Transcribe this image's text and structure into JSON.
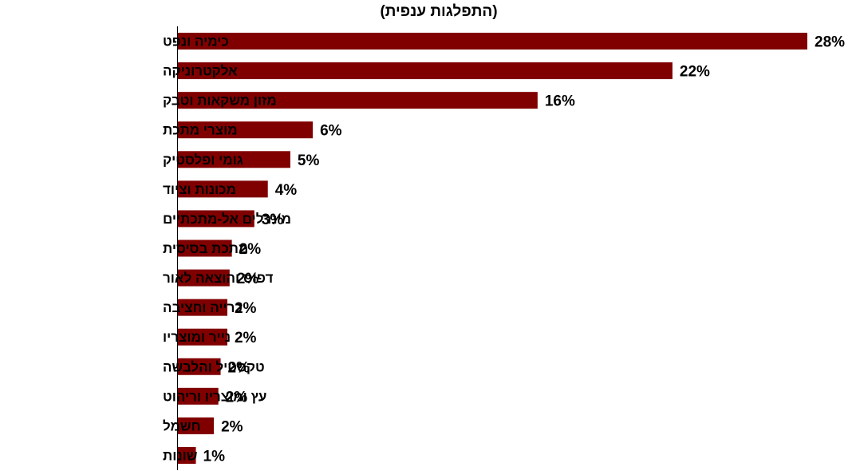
{
  "chart_data": {
    "type": "bar",
    "orientation": "horizontal",
    "title": "(התפלגות ענפית)",
    "categories": [
      "כימיה ונפט",
      "אלקטרוניקה",
      "מזון משקאות וטבק",
      "מוצרי מתכת",
      "גומי ופלסטיק",
      "מכונות וציוד",
      "מינרלים אל-מתכתיים",
      "מתכת בסיסית",
      "דפוס והוצאה לאור",
      "כרייה וחציבה",
      "נייר ומוצריו",
      "טקסטיל והלבשה",
      "עץ ומוצריו וריהוט",
      "חשמל",
      "שונות"
    ],
    "values": [
      28,
      22,
      16,
      6,
      5,
      4,
      3,
      2,
      2,
      2,
      2,
      2,
      2,
      2,
      1
    ],
    "value_labels": [
      "28%",
      "22%",
      "16%",
      "6%",
      "5%",
      "4%",
      "3%",
      "2%",
      "2%",
      "2%",
      "2%",
      "2%",
      "2%",
      "2%",
      "1%"
    ],
    "bar_fill": [
      28.0,
      22.0,
      16.0,
      6.0,
      5.0,
      4.0,
      3.4,
      2.4,
      2.3,
      2.2,
      2.2,
      1.9,
      1.8,
      1.6,
      0.8
    ],
    "xlim": [
      0,
      28
    ],
    "bar_color": "#800000",
    "grid": false,
    "legend": "none"
  }
}
